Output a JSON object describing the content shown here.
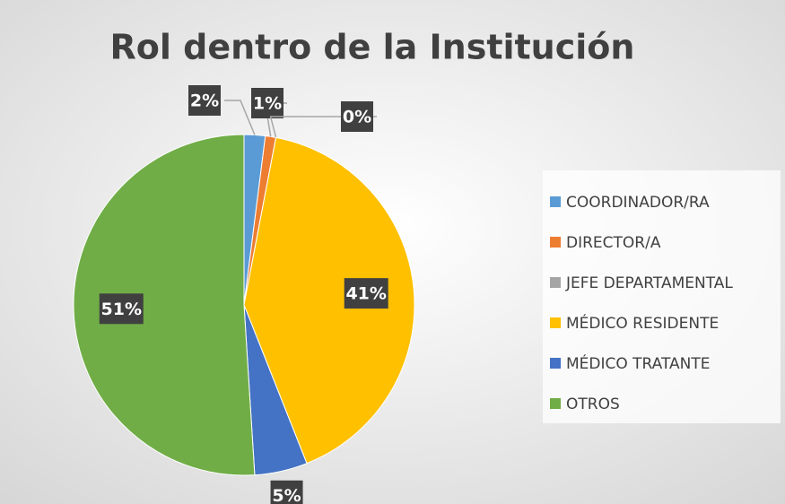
{
  "chart_data": {
    "type": "pie",
    "title": "Rol dentro de la Institución",
    "categories": [
      "COORDINADOR/RA",
      "DIRECTOR/A",
      "JEFE DEPARTAMENTAL",
      "MÉDICO RESIDENTE",
      "MÉDICO TRATANTE",
      "OTROS"
    ],
    "values": [
      2,
      1,
      0,
      41,
      5,
      51
    ],
    "value_labels": [
      "2%",
      "1%",
      "0%",
      "41%",
      "5%",
      "51%"
    ],
    "colors": [
      "#5b9bd5",
      "#ed7d31",
      "#a5a5a5",
      "#ffc000",
      "#4472c4",
      "#70ad47"
    ],
    "legend": "right"
  }
}
